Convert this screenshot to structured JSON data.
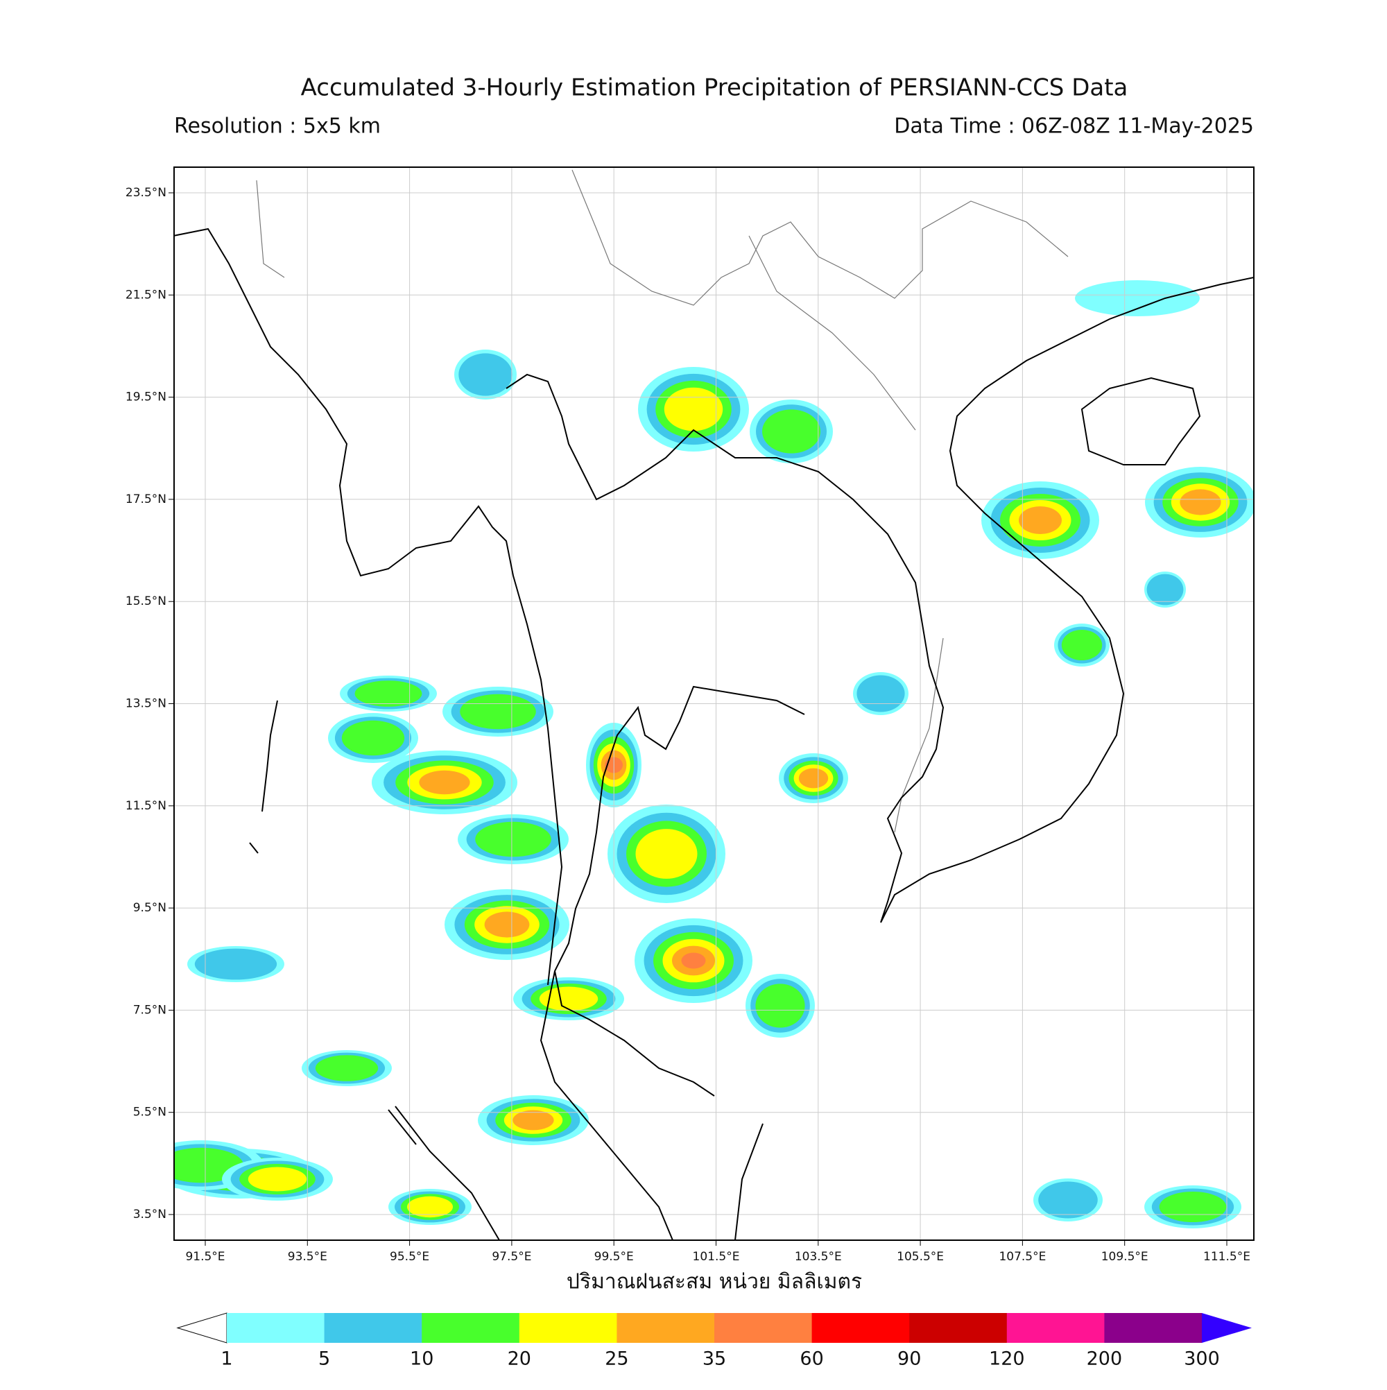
{
  "header": {
    "title": "Accumulated 3-Hourly Estimation Precipitation of PERSIANN-CCS Data",
    "resolution": "Resolution : 5x5 km",
    "data_time": "Data Time : 06Z-08Z 11-May-2025"
  },
  "map": {
    "lat_labels": [
      "23.5°N",
      "21.5°N",
      "19.5°N",
      "17.5°N",
      "15.5°N",
      "13.5°N",
      "11.5°N",
      "9.5°N",
      "7.5°N",
      "5.5°N",
      "3.5°N"
    ],
    "lon_labels": [
      "91.5°E",
      "93.5°E",
      "95.5°E",
      "97.5°E",
      "99.5°E",
      "101.5°E",
      "103.5°E",
      "105.5°E",
      "107.5°E",
      "109.5°E",
      "111.5°E"
    ],
    "xlabel": "ปริมาณฝนสะสม หน่วย มิลลิเมตร"
  },
  "colorbar": {
    "levels": [
      "1",
      "5",
      "10",
      "20",
      "25",
      "35",
      "60",
      "90",
      "120",
      "200",
      "300"
    ],
    "colors": [
      "#80ffff",
      "#40c8ea",
      "#48ff2c",
      "#ffff00",
      "#ffa820",
      "#ff8040",
      "#ff0000",
      "#cc0000",
      "#ff1493",
      "#8b008b"
    ],
    "over_color": "#3300ff"
  }
}
